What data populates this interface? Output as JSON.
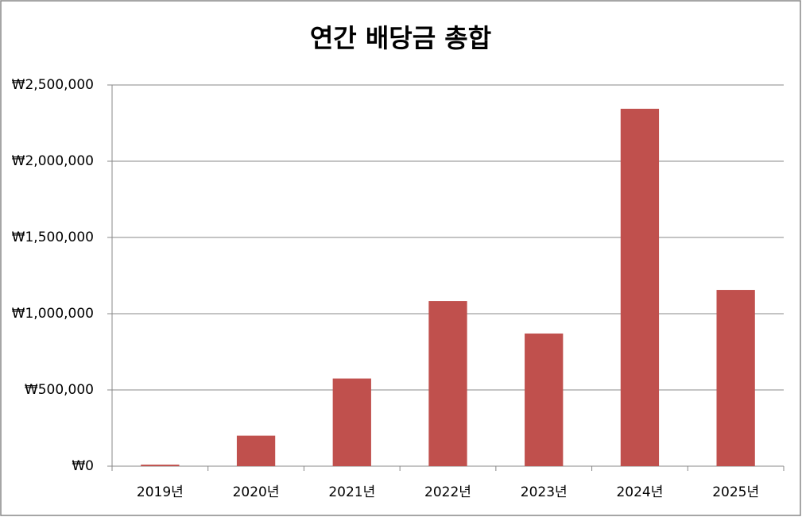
{
  "chart_data": {
    "type": "bar",
    "title": "연간 배당금 총합",
    "categories": [
      "2019년",
      "2020년",
      "2021년",
      "2022년",
      "2023년",
      "2024년",
      "2025년"
    ],
    "values": [
      10000,
      200000,
      575000,
      1083000,
      870000,
      2344000,
      1156000
    ],
    "color": "#c0504d",
    "ylim": [
      0,
      2500000
    ],
    "yticks": [
      {
        "value": 0,
        "label": "₩0"
      },
      {
        "value": 500000,
        "label": "₩500,000"
      },
      {
        "value": 1000000,
        "label": "₩1,000,000"
      },
      {
        "value": 1500000,
        "label": "₩1,500,000"
      },
      {
        "value": 2000000,
        "label": "₩2,000,000"
      },
      {
        "value": 2500000,
        "label": "₩2,500,000"
      }
    ],
    "grid": true
  }
}
